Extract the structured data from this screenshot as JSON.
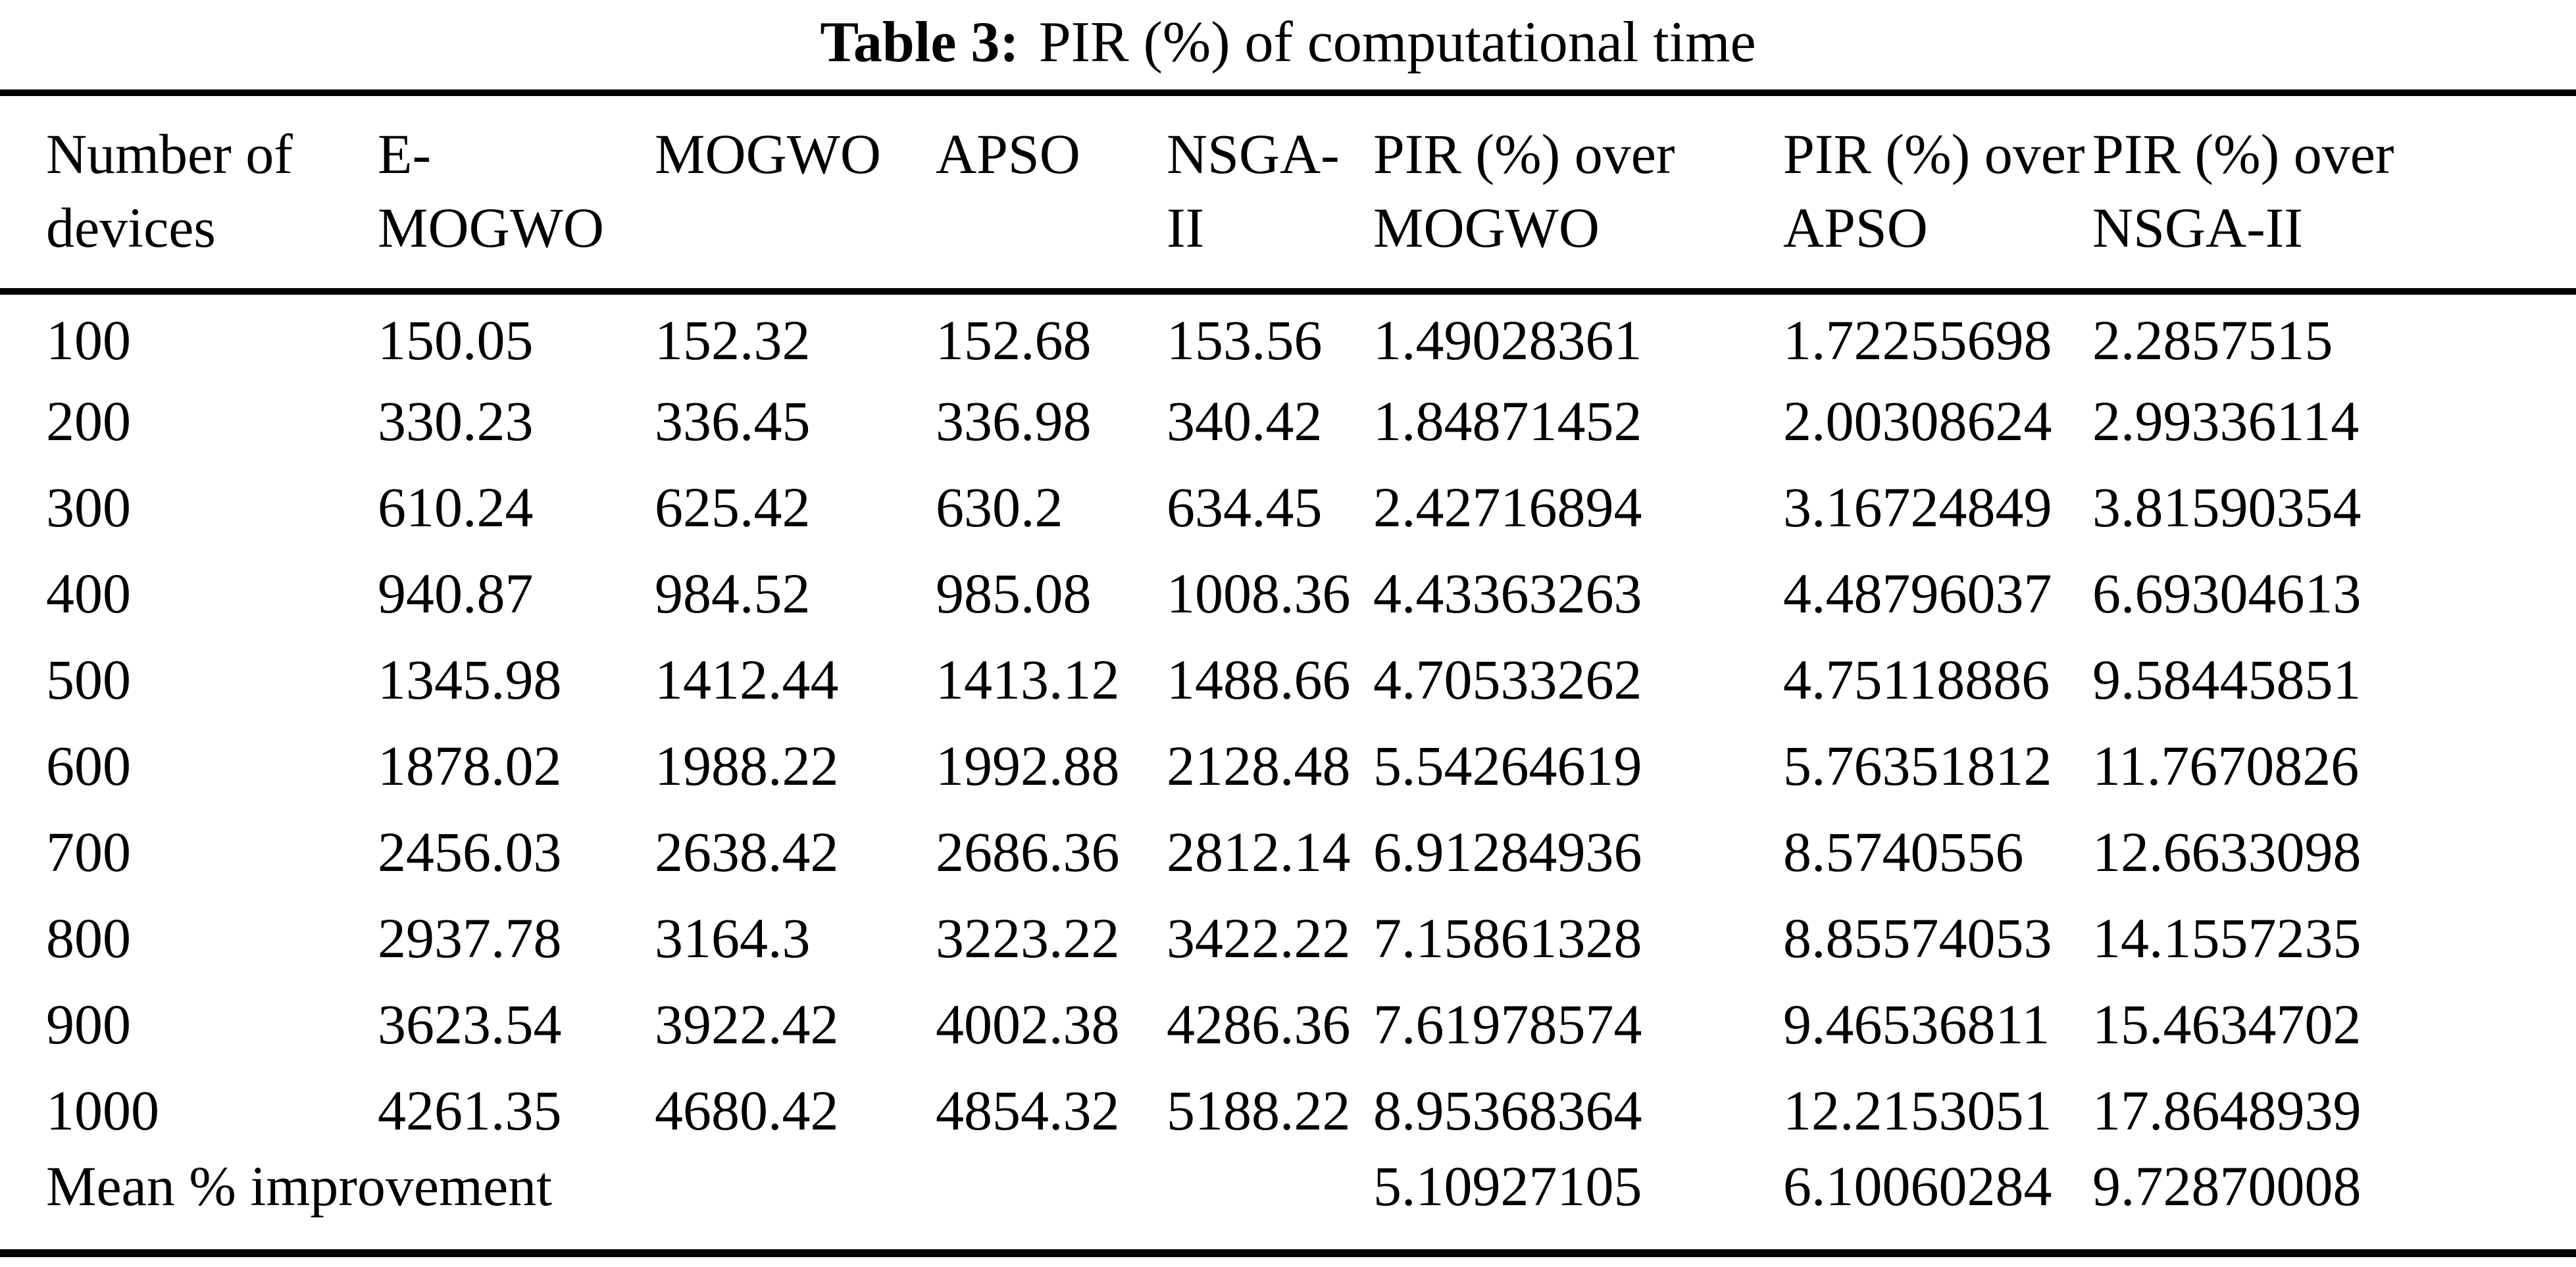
{
  "caption": {
    "label": "Table 3:",
    "title": "PIR (%) of computational time"
  },
  "table": {
    "headers": [
      {
        "line1": "Number of",
        "line2": "devices"
      },
      {
        "line1": "E-",
        "line2": "MOGWO"
      },
      {
        "line1": "MOGWO",
        "line2": ""
      },
      {
        "line1": "APSO",
        "line2": ""
      },
      {
        "line1": "NSGA-",
        "line2": "II"
      },
      {
        "line1": "PIR (%) over",
        "line2": "MOGWO"
      },
      {
        "line1": "PIR (%) over",
        "line2": "APSO"
      },
      {
        "line1": "PIR (%) over",
        "line2": "NSGA-II"
      }
    ],
    "rows": [
      [
        "100",
        "150.05",
        "152.32",
        "152.68",
        "153.56",
        "1.49028361",
        "1.72255698",
        "2.2857515"
      ],
      [
        "200",
        "330.23",
        "336.45",
        "336.98",
        "340.42",
        "1.84871452",
        "2.00308624",
        "2.99336114"
      ],
      [
        "300",
        "610.24",
        "625.42",
        "630.2",
        "634.45",
        "2.42716894",
        "3.16724849",
        "3.81590354"
      ],
      [
        "400",
        "940.87",
        "984.52",
        "985.08",
        "1008.36",
        "4.43363263",
        "4.48796037",
        "6.69304613"
      ],
      [
        "500",
        "1345.98",
        "1412.44",
        "1413.12",
        "1488.66",
        "4.70533262",
        "4.75118886",
        "9.58445851"
      ],
      [
        "600",
        "1878.02",
        "1988.22",
        "1992.88",
        "2128.48",
        "5.54264619",
        "5.76351812",
        "11.7670826"
      ],
      [
        "700",
        "2456.03",
        "2638.42",
        "2686.36",
        "2812.14",
        "6.91284936",
        "8.5740556",
        "12.6633098"
      ],
      [
        "800",
        "2937.78",
        "3164.3",
        "3223.22",
        "3422.22",
        "7.15861328",
        "8.85574053",
        "14.1557235"
      ],
      [
        "900",
        "3623.54",
        "3922.42",
        "4002.38",
        "4286.36",
        "7.61978574",
        "9.46536811",
        "15.4634702"
      ],
      [
        "1000",
        "4261.35",
        "4680.42",
        "4854.32",
        "5188.22",
        "8.95368364",
        "12.2153051",
        "17.8648939"
      ]
    ],
    "footer_row": {
      "label": "Mean % improvement",
      "values": [
        "5.10927105",
        "6.10060284",
        "9.72870008"
      ]
    }
  }
}
